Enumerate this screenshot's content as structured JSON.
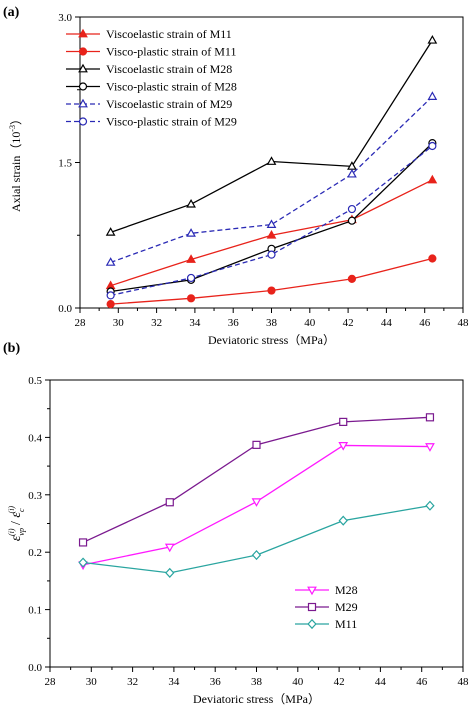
{
  "chart_data": [
    {
      "panel_label": "(a)",
      "type": "line",
      "xlabel": "Deviatoric stress（MPa）",
      "ylabel": "Axial strain（10",
      "ylabel_sup": "-3",
      "ylabel_close": "）",
      "xlim": [
        28,
        48
      ],
      "ylim": [
        0,
        3.0
      ],
      "xticks": [
        28,
        30,
        32,
        34,
        36,
        38,
        40,
        42,
        44,
        46,
        48
      ],
      "xtick_labels": [
        "28",
        "30",
        "32",
        "34",
        "36",
        "38",
        "40",
        "42",
        "44",
        "46",
        "48"
      ],
      "yticks": [
        0,
        1.5,
        3.0
      ],
      "ytick_labels": [
        "0.0",
        "1.5",
        "3.0"
      ],
      "legend_position": "top-left",
      "grid": false,
      "series": [
        {
          "name": "Viscoelastic strain of  M11",
          "color": "#e8231b",
          "marker": "triangle-up",
          "fill": "filled",
          "dash": false,
          "x": [
            29.6,
            33.8,
            38.0,
            42.2,
            46.4
          ],
          "y": [
            0.23,
            0.5,
            0.75,
            0.91,
            1.32
          ]
        },
        {
          "name": "Visco-plastic strain of  M11",
          "color": "#e8231b",
          "marker": "circle",
          "fill": "filled",
          "dash": false,
          "x": [
            29.6,
            33.8,
            38.0,
            42.2,
            46.4
          ],
          "y": [
            0.04,
            0.1,
            0.18,
            0.3,
            0.51
          ]
        },
        {
          "name": "Viscoelastic  strain  of  M28",
          "color": "#000000",
          "marker": "triangle-up",
          "fill": "open",
          "dash": false,
          "x": [
            29.6,
            33.8,
            38.0,
            42.2,
            46.4
          ],
          "y": [
            0.78,
            1.07,
            1.51,
            1.46,
            2.76
          ]
        },
        {
          "name": "Visco-plastic strain of  M28",
          "color": "#000000",
          "marker": "circle",
          "fill": "open",
          "dash": false,
          "x": [
            29.6,
            33.8,
            38.0,
            42.2,
            46.4
          ],
          "y": [
            0.17,
            0.29,
            0.61,
            0.9,
            1.7
          ]
        },
        {
          "name": "Viscoelastic  strain  of  M29",
          "color": "#2a2ab5",
          "marker": "triangle-up",
          "fill": "open",
          "dash": true,
          "x": [
            29.6,
            33.8,
            38.0,
            42.2,
            46.4
          ],
          "y": [
            0.47,
            0.77,
            0.86,
            1.38,
            2.18
          ]
        },
        {
          "name": "Visco-plastic strain of  M29",
          "color": "#2a2ab5",
          "marker": "circle",
          "fill": "open",
          "dash": true,
          "x": [
            29.6,
            33.8,
            38.0,
            42.2,
            46.4
          ],
          "y": [
            0.13,
            0.31,
            0.55,
            1.02,
            1.67
          ]
        }
      ]
    },
    {
      "panel_label": "(b)",
      "type": "line",
      "xlabel": "Deviatoric stress（MPa）",
      "ylabel_num": "ε",
      "ylabel_num_sub": "vp",
      "ylabel_den": "ε",
      "ylabel_den_sub": "c",
      "ylabel_sup": "(i)",
      "ylabel_sep": " / ",
      "xlim": [
        28,
        48
      ],
      "ylim": [
        0.0,
        0.5
      ],
      "xticks": [
        28,
        30,
        32,
        34,
        36,
        38,
        40,
        42,
        44,
        46,
        48
      ],
      "xtick_labels": [
        "28",
        "30",
        "32",
        "34",
        "36",
        "38",
        "40",
        "42",
        "44",
        "46",
        "48"
      ],
      "yticks": [
        0.0,
        0.1,
        0.2,
        0.3,
        0.4,
        0.5
      ],
      "ytick_labels": [
        "0.0",
        "0.1",
        "0.2",
        "0.3",
        "0.4",
        "0.5"
      ],
      "legend_position": "bottom-right",
      "grid": false,
      "series": [
        {
          "name": "M28",
          "color": "#ff1aff",
          "marker": "triangle-down",
          "fill": "open",
          "dash": false,
          "x": [
            29.6,
            33.8,
            38.0,
            42.2,
            46.4
          ],
          "y": [
            0.178,
            0.209,
            0.288,
            0.386,
            0.384
          ]
        },
        {
          "name": "M29",
          "color": "#7b1a8f",
          "marker": "square",
          "fill": "open",
          "dash": false,
          "x": [
            29.6,
            33.8,
            38.0,
            42.2,
            46.4
          ],
          "y": [
            0.217,
            0.287,
            0.387,
            0.427,
            0.435
          ]
        },
        {
          "name": "M11",
          "color": "#2aa5a0",
          "marker": "diamond",
          "fill": "open",
          "dash": false,
          "x": [
            29.6,
            33.8,
            38.0,
            42.2,
            46.4
          ],
          "y": [
            0.182,
            0.164,
            0.195,
            0.255,
            0.281
          ]
        }
      ]
    }
  ]
}
